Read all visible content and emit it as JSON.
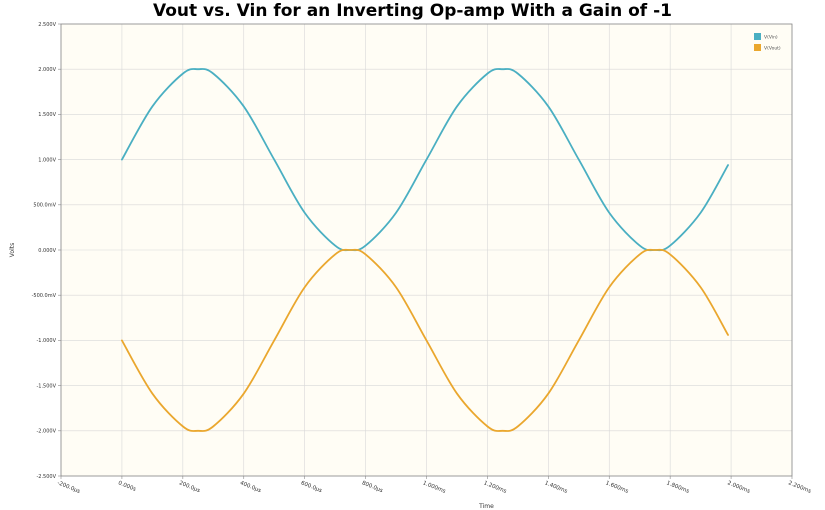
{
  "chart_data": {
    "type": "line",
    "title": "Vout vs. Vin for an Inverting Op-amp With a Gain of -1",
    "xlabel": "Time",
    "ylabel": "Volts",
    "x_unit": "s",
    "xlim": [
      -0.0002,
      0.0022
    ],
    "ylim": [
      -2.5,
      2.5
    ],
    "x_ticks": [
      -0.0002,
      0.0,
      0.0002,
      0.0004,
      0.0006,
      0.0008,
      0.001,
      0.0012,
      0.0014,
      0.0016,
      0.0018,
      0.002,
      0.0022
    ],
    "x_tick_labels": [
      "-200.0µs",
      "0.000s",
      "200.0µs",
      "400.0µs",
      "600.0µs",
      "800.0µs",
      "1.000ms",
      "1.200ms",
      "1.400ms",
      "1.600ms",
      "1.800ms",
      "2.000ms",
      "2.200ms"
    ],
    "y_ticks": [
      -2.5,
      -2.0,
      -1.5,
      -1.0,
      -0.5,
      0.0,
      0.5,
      1.0,
      1.5,
      2.0,
      2.5
    ],
    "y_tick_labels": [
      "-2.500V",
      "-2.000V",
      "-1.500V",
      "-1.000V",
      "-500.0mV",
      "0.000V",
      "500.0mV",
      "1.000V",
      "1.500V",
      "2.000V",
      "2.500V"
    ],
    "grid": true,
    "legend_position": "top-right",
    "series": [
      {
        "name": "V(Vin)",
        "color": "#4aafc2",
        "x": [
          0.0,
          0.0001,
          0.0002,
          0.00025,
          0.0003,
          0.0004,
          0.0005,
          0.0006,
          0.0007,
          0.00075,
          0.0008,
          0.0009,
          0.001,
          0.0011,
          0.0012,
          0.00125,
          0.0013,
          0.0014,
          0.0015,
          0.0016,
          0.0017,
          0.00175,
          0.0018,
          0.0019,
          0.00199
        ],
        "values": [
          1.0,
          1.588,
          1.951,
          2.0,
          1.951,
          1.588,
          1.0,
          0.412,
          0.049,
          0.0,
          0.049,
          0.412,
          1.0,
          1.588,
          1.951,
          2.0,
          1.951,
          1.588,
          1.0,
          0.412,
          0.049,
          0.0,
          0.049,
          0.412,
          0.94
        ]
      },
      {
        "name": "V(Vout)",
        "color": "#eaa72e",
        "x": [
          0.0,
          0.0001,
          0.0002,
          0.00025,
          0.0003,
          0.0004,
          0.0005,
          0.0006,
          0.0007,
          0.00075,
          0.0008,
          0.0009,
          0.001,
          0.0011,
          0.0012,
          0.00125,
          0.0013,
          0.0014,
          0.0015,
          0.0016,
          0.0017,
          0.00175,
          0.0018,
          0.0019,
          0.00199
        ],
        "values": [
          -1.0,
          -1.588,
          -1.951,
          -2.0,
          -1.951,
          -1.588,
          -1.0,
          -0.412,
          -0.049,
          0.0,
          -0.049,
          -0.412,
          -1.0,
          -1.588,
          -1.951,
          -2.0,
          -1.951,
          -1.588,
          -1.0,
          -0.412,
          -0.049,
          0.0,
          -0.049,
          -0.412,
          -0.94
        ]
      }
    ]
  },
  "colors": {
    "plot_background": "#fffdf5",
    "grid": "#d8d8d8",
    "axis": "#888888"
  }
}
